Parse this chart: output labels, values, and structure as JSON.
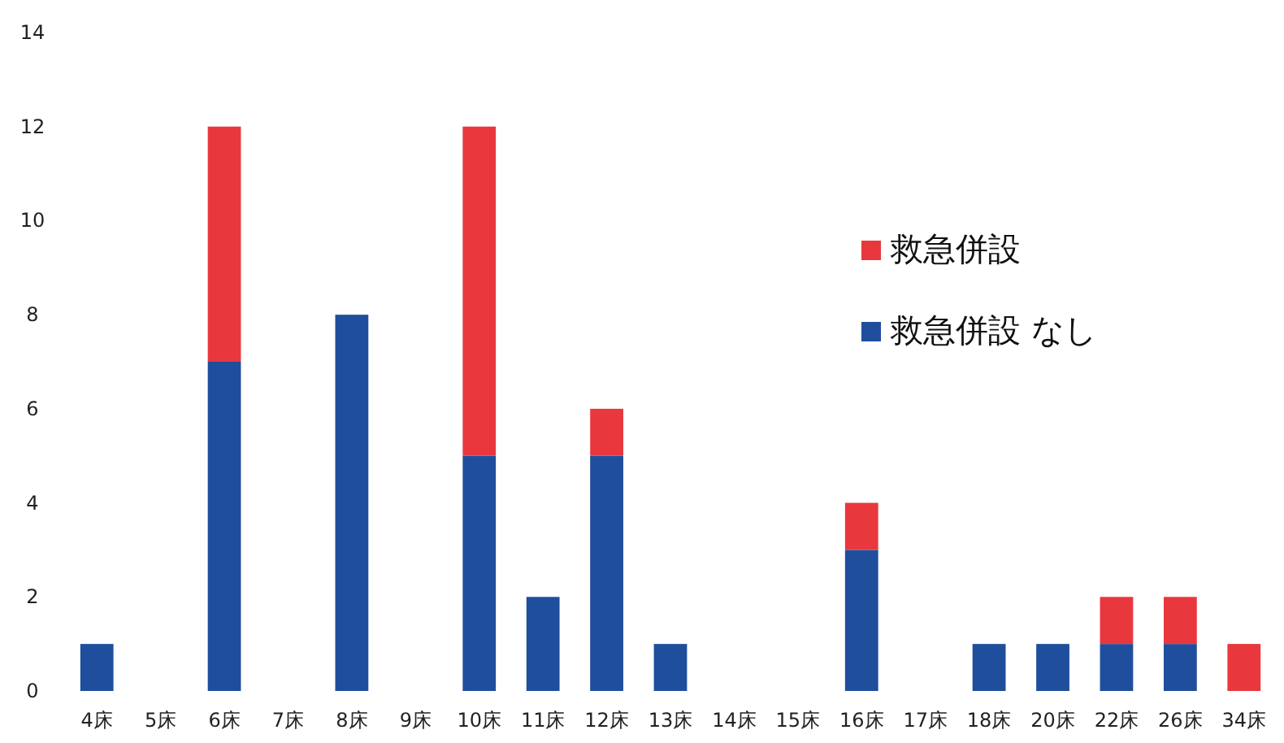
{
  "chart_data": {
    "type": "bar",
    "stacked": true,
    "categories": [
      "4床",
      "5床",
      "6床",
      "7床",
      "8床",
      "9床",
      "10床",
      "11床",
      "12床",
      "13床",
      "14床",
      "15床",
      "16床",
      "17床",
      "18床",
      "20床",
      "22床",
      "26床",
      "34床"
    ],
    "series": [
      {
        "name": "救急併設 なし",
        "color": "#1f4e9c",
        "values": [
          1,
          0,
          7,
          0,
          8,
          0,
          5,
          2,
          5,
          1,
          0,
          0,
          3,
          0,
          1,
          1,
          1,
          1,
          0
        ]
      },
      {
        "name": "救急併設",
        "color": "#e8383d",
        "values": [
          0,
          0,
          5,
          0,
          0,
          0,
          7,
          0,
          1,
          0,
          0,
          0,
          1,
          0,
          0,
          0,
          1,
          1,
          1
        ]
      }
    ],
    "ylim": [
      0,
      14
    ],
    "yticks": [
      0,
      2,
      4,
      6,
      8,
      10,
      12,
      14
    ],
    "grid": false,
    "legend": "right"
  }
}
